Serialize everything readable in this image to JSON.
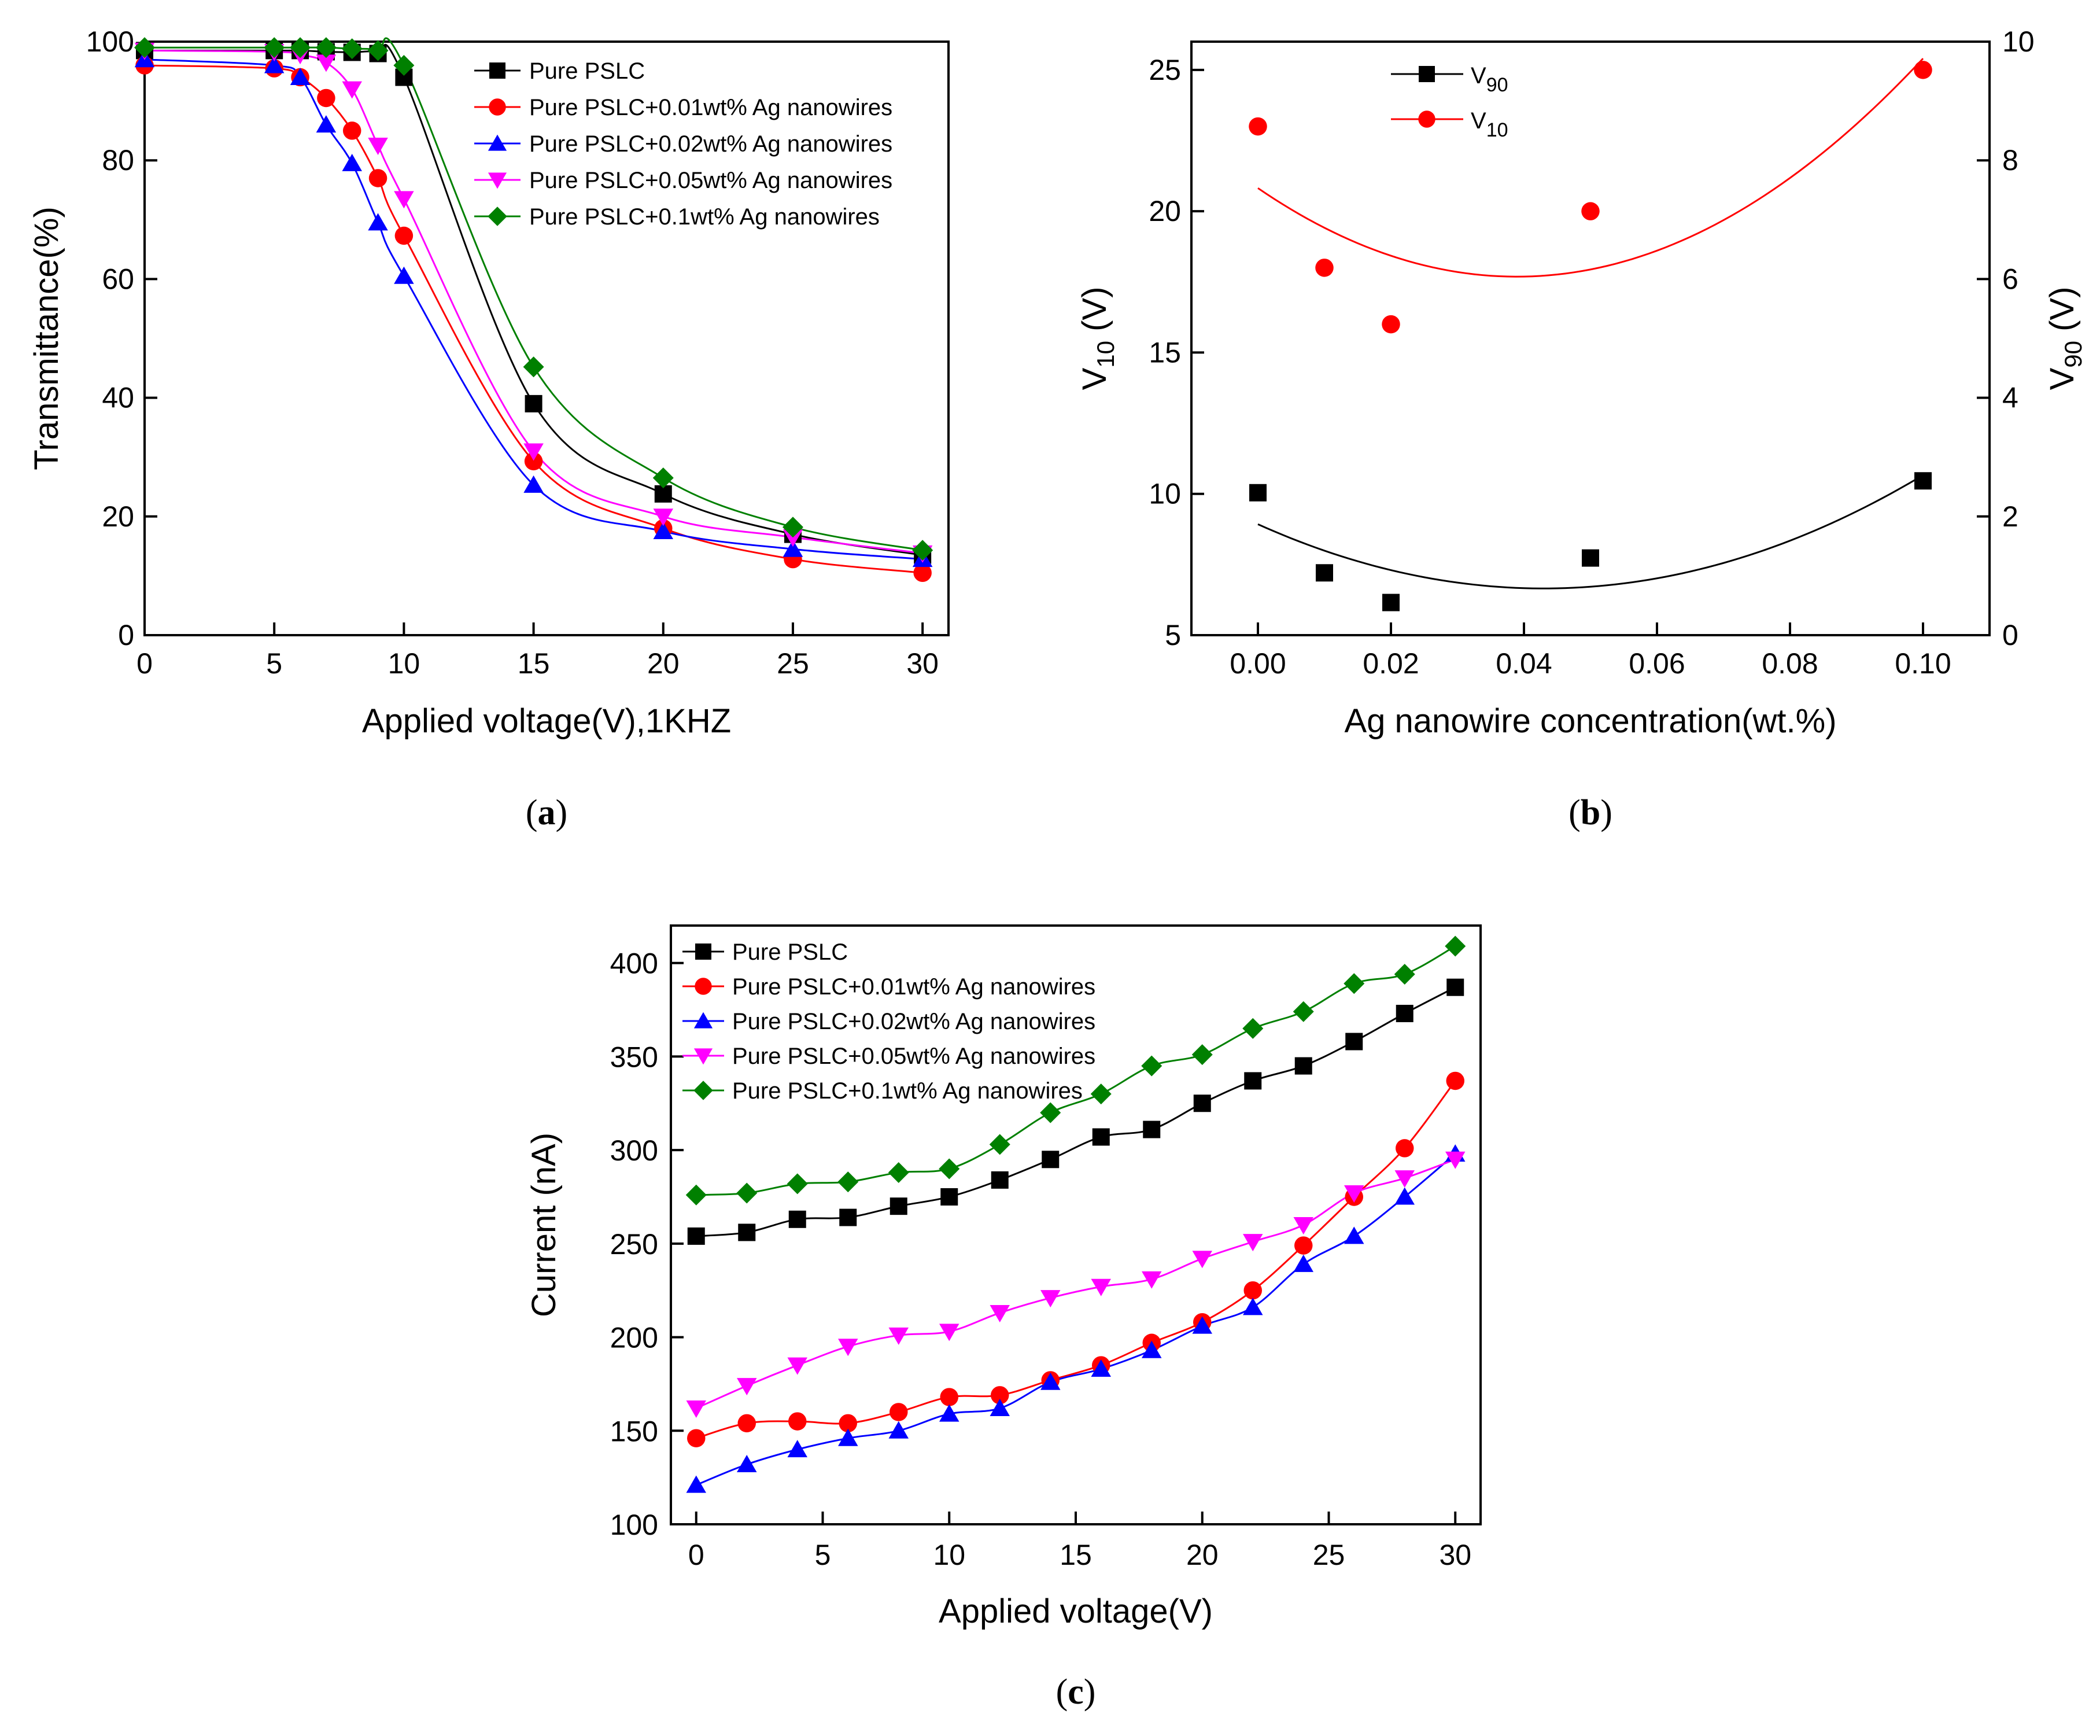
{
  "chart_data": [
    {
      "id": "a",
      "type": "line",
      "caption": "(a)",
      "xlabel": "Applied voltage(V),1KHZ",
      "ylabel": "Transmittance(%)",
      "xlim": [
        0,
        31
      ],
      "ylim": [
        0,
        100
      ],
      "xticks": [
        0,
        5,
        10,
        15,
        20,
        25,
        30
      ],
      "yticks": [
        0,
        20,
        40,
        60,
        80,
        100
      ],
      "legend_position": "top-right",
      "x": [
        0,
        5,
        6,
        7,
        8,
        9,
        10,
        15,
        20,
        25,
        30
      ],
      "series": [
        {
          "name": "Pure PSLC",
          "color": "#000000",
          "marker": "square",
          "values": [
            98.5,
            98.5,
            98.5,
            98.3,
            98.2,
            98,
            94,
            39,
            23.8,
            17,
            13.5
          ]
        },
        {
          "name": "Pure PSLC+0.01wt% Ag nanowires",
          "color": "#ff0000",
          "marker": "circle",
          "values": [
            96,
            95.5,
            94,
            90.5,
            85,
            77,
            67.3,
            29.3,
            18,
            12.8,
            10.5
          ]
        },
        {
          "name": "Pure PSLC+0.02wt% Ag nanowires",
          "color": "#0000ff",
          "marker": "triangle-up",
          "values": [
            97,
            96,
            94,
            86,
            79.5,
            69.5,
            60.5,
            25.3,
            17.5,
            14.5,
            12.8
          ]
        },
        {
          "name": "Pure PSLC+0.05wt% Ag nanowires",
          "color": "#ff00ff",
          "marker": "triangle-down",
          "values": [
            98.5,
            98.3,
            97.8,
            96.5,
            92,
            82.5,
            73.5,
            31,
            20,
            16.5,
            13.8
          ]
        },
        {
          "name": "Pure PSLC+0.1wt% Ag nanowires",
          "color": "#008000",
          "marker": "diamond",
          "values": [
            99,
            99,
            99,
            99,
            98.8,
            98.5,
            96,
            45.2,
            26.5,
            18.2,
            14.3
          ]
        }
      ]
    },
    {
      "id": "b",
      "type": "scatter",
      "caption": "(b)",
      "xlabel": "Ag nanowire concentration(wt.%)",
      "ylabel_left": "V10 (V)",
      "ylabel_right": "V90 (V)",
      "ylabel_left_color": "#ff0000",
      "xlim": [
        -0.01,
        0.11
      ],
      "ylim_left": [
        5,
        26
      ],
      "ylim_right": [
        0,
        10
      ],
      "xticks": [
        "0.00",
        "0.02",
        "0.04",
        "0.06",
        "0.08",
        "0.10"
      ],
      "yticks_left": [
        5,
        10,
        15,
        20,
        25
      ],
      "yticks_right": [
        0,
        2,
        4,
        6,
        8,
        10
      ],
      "legend_position": "top-left",
      "x": [
        0.0,
        0.01,
        0.02,
        0.05,
        0.1
      ],
      "series": [
        {
          "name": "V90",
          "name_main": "V",
          "name_sub": "90",
          "axis": "right",
          "color": "#000000",
          "marker": "square",
          "values": [
            2.4,
            1.05,
            0.55,
            1.3,
            2.6
          ]
        },
        {
          "name": "V10",
          "name_main": "V",
          "name_sub": "10",
          "axis": "left",
          "color": "#ff0000",
          "marker": "circle",
          "values": [
            23,
            18,
            16,
            20,
            25
          ]
        }
      ]
    },
    {
      "id": "c",
      "type": "line",
      "caption": "(c)",
      "xlabel": "Applied voltage(V)",
      "ylabel": "Current (nA)",
      "xlim": [
        -1,
        31
      ],
      "ylim": [
        100,
        420
      ],
      "xticks": [
        0,
        5,
        10,
        15,
        20,
        25,
        30
      ],
      "yticks": [
        100,
        150,
        200,
        250,
        300,
        350,
        400
      ],
      "legend_position": "top-left",
      "x": [
        0,
        2,
        4,
        6,
        8,
        10,
        12,
        14,
        16,
        18,
        20,
        22,
        24,
        26,
        28,
        30
      ],
      "series": [
        {
          "name": "Pure PSLC",
          "color": "#000000",
          "marker": "square",
          "values": [
            254,
            256,
            263,
            264,
            270,
            275,
            284,
            295,
            307,
            311,
            325,
            337,
            345,
            358,
            373,
            387
          ]
        },
        {
          "name": "Pure PSLC+0.01wt% Ag nanowires",
          "color": "#ff0000",
          "marker": "circle",
          "values": [
            146,
            154,
            155,
            154,
            160,
            168,
            169,
            177,
            185,
            197,
            208,
            225,
            249,
            275,
            301,
            337
          ]
        },
        {
          "name": "Pure PSLC+0.02wt% Ag nanowires",
          "color": "#0000ff",
          "marker": "triangle-up",
          "values": [
            121,
            132,
            140,
            146,
            150,
            159,
            162,
            176,
            183,
            193,
            206,
            216,
            239,
            254,
            275,
            298
          ]
        },
        {
          "name": "Pure PSLC+0.05wt% Ag nanowires",
          "color": "#ff00ff",
          "marker": "triangle-down",
          "values": [
            162,
            174,
            185,
            195,
            201,
            203,
            213,
            221,
            227,
            231,
            242,
            251,
            260,
            277,
            285,
            295
          ]
        },
        {
          "name": "Pure PSLC+0.1wt% Ag nanowires",
          "color": "#008000",
          "marker": "diamond",
          "values": [
            276,
            277,
            282,
            283,
            288,
            290,
            303,
            320,
            330,
            345,
            351,
            365,
            374,
            389,
            394,
            409
          ]
        }
      ]
    }
  ]
}
